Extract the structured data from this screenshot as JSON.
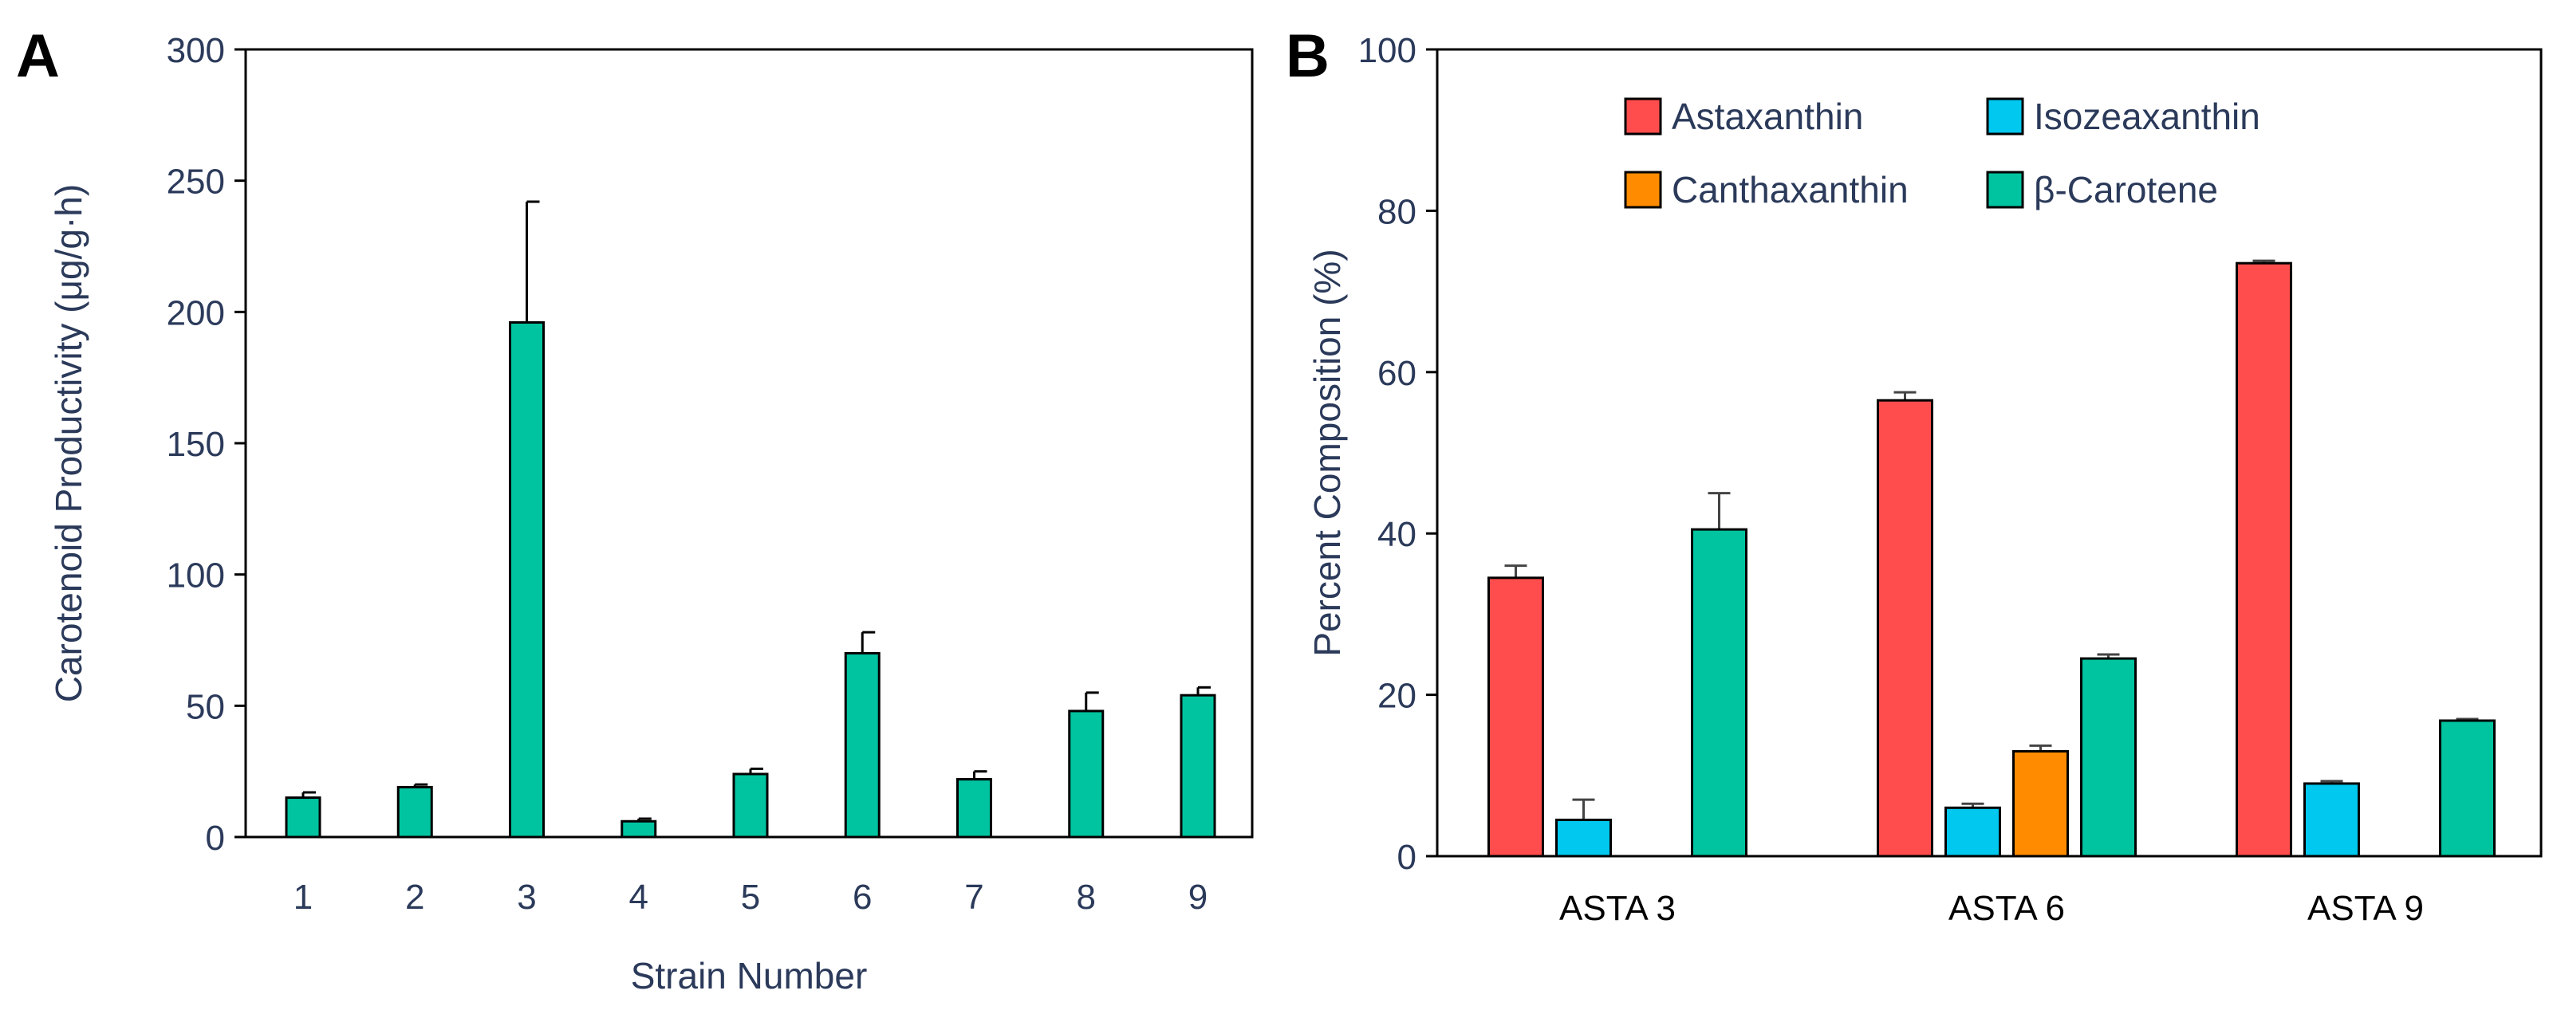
{
  "chart_data": [
    {
      "panel": "A",
      "type": "bar",
      "title": "",
      "xlabel": "Strain Number",
      "ylabel": "Carotenoid Productivity (μg/g·h)",
      "ylim": [
        0,
        300
      ],
      "yticks": [
        0,
        50,
        100,
        150,
        200,
        250,
        300
      ],
      "categories": [
        "1",
        "2",
        "3",
        "4",
        "5",
        "6",
        "7",
        "8",
        "9"
      ],
      "values": [
        15,
        19,
        196,
        6,
        24,
        70,
        22,
        48,
        54
      ],
      "errors": [
        2,
        1,
        46,
        1,
        2,
        8,
        3,
        7,
        3
      ],
      "color": "#00c4a0",
      "grid": false
    },
    {
      "panel": "B",
      "type": "bar",
      "title": "",
      "xlabel": "",
      "ylabel": "Percent Composition (%)",
      "ylim": [
        0,
        100
      ],
      "yticks": [
        0,
        20,
        40,
        60,
        80,
        100
      ],
      "categories": [
        "ASTA 3",
        "ASTA 6",
        "ASTA 9"
      ],
      "legend_position": "top",
      "grid": false,
      "series": [
        {
          "name": "Astaxanthin",
          "color": "#ff4d4d",
          "values": [
            34.5,
            56.5,
            73.5
          ],
          "errors": [
            1.5,
            1.0,
            0.3
          ]
        },
        {
          "name": "Isozeaxanthin",
          "color": "#00c8ef",
          "values": [
            4.5,
            6.0,
            9.0
          ],
          "errors": [
            2.5,
            0.5,
            0.3
          ]
        },
        {
          "name": "Canthaxanthin",
          "color": "#ff8c00",
          "values": [
            0,
            13.0,
            0
          ],
          "errors": [
            0,
            0.7,
            0
          ]
        },
        {
          "name": "β-Carotene",
          "color": "#00c4a0",
          "values": [
            40.5,
            24.5,
            16.8
          ],
          "errors": [
            4.5,
            0.5,
            0.2
          ]
        }
      ]
    }
  ]
}
